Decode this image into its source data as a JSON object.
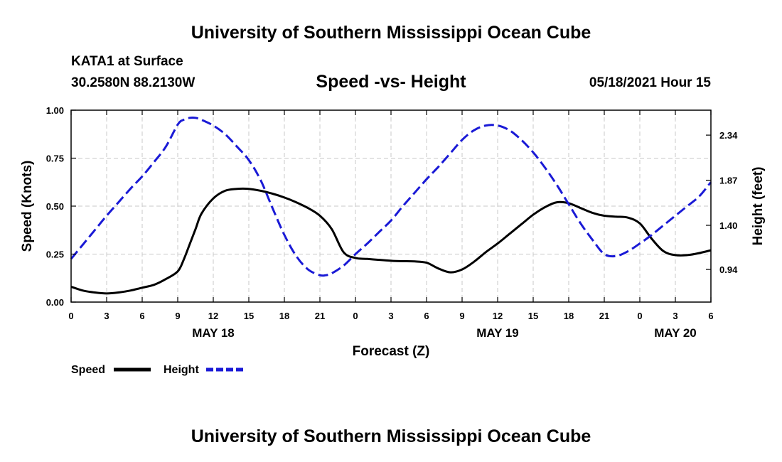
{
  "header": {
    "title": "University of Southern Mississippi Ocean Cube",
    "station": "KATA1 at Surface",
    "coords": "30.2580N  88.2130W",
    "datetime": "05/18/2021 Hour 15",
    "footer_title": "University of Southern Mississippi Ocean Cube"
  },
  "chart_data": {
    "type": "line",
    "title": "Speed -vs- Height",
    "xlabel": "Forecast (Z)",
    "ylabel": "Speed (Knots)",
    "y2label": "Height (feet)",
    "xlim": [
      0,
      54
    ],
    "ylim": [
      0,
      1.0
    ],
    "y2lim": [
      0.6,
      2.6
    ],
    "x_tick_values": [
      0,
      3,
      6,
      9,
      12,
      15,
      18,
      21,
      24,
      27,
      30,
      33,
      36,
      39,
      42,
      45,
      48,
      51,
      54
    ],
    "x_tick_labels": [
      "0",
      "3",
      "6",
      "9",
      "12",
      "15",
      "18",
      "21",
      "0",
      "3",
      "6",
      "9",
      "12",
      "15",
      "18",
      "21",
      "0",
      "3",
      "6"
    ],
    "y_ticks": [
      0.0,
      0.25,
      0.5,
      0.75,
      1.0
    ],
    "y_tick_labels": [
      "0.00",
      "0.25",
      "0.50",
      "0.75",
      "1.00"
    ],
    "y2_ticks": [
      0.94,
      1.4,
      1.87,
      2.34
    ],
    "y2_tick_labels": [
      "0.94",
      "1.40",
      "1.87",
      "2.34"
    ],
    "date_labels": [
      {
        "x": 12,
        "label": "MAY 18"
      },
      {
        "x": 36,
        "label": "MAY 19"
      },
      {
        "x": 51,
        "label": "MAY 20"
      }
    ],
    "series": [
      {
        "name": "Speed",
        "axis": "left",
        "color": "#000000",
        "x": [
          0,
          1,
          2,
          3,
          4,
          5,
          6,
          7,
          8,
          9,
          9.5,
          10,
          10.5,
          11,
          12,
          13,
          14,
          15,
          16,
          17,
          18,
          19,
          20,
          21,
          22,
          23,
          24,
          25,
          26,
          27,
          28,
          29,
          30,
          31,
          32,
          33,
          34,
          35,
          36,
          37,
          38,
          39,
          40,
          41,
          42,
          43,
          44,
          45,
          46,
          47,
          48,
          49,
          50,
          51,
          52,
          53,
          54
        ],
        "values": [
          0.08,
          0.06,
          0.05,
          0.045,
          0.05,
          0.06,
          0.075,
          0.09,
          0.12,
          0.16,
          0.22,
          0.3,
          0.38,
          0.46,
          0.54,
          0.58,
          0.59,
          0.59,
          0.58,
          0.565,
          0.545,
          0.52,
          0.49,
          0.45,
          0.38,
          0.26,
          0.23,
          0.225,
          0.22,
          0.215,
          0.213,
          0.212,
          0.205,
          0.175,
          0.155,
          0.17,
          0.21,
          0.26,
          0.305,
          0.355,
          0.405,
          0.455,
          0.495,
          0.52,
          0.515,
          0.49,
          0.465,
          0.45,
          0.445,
          0.44,
          0.41,
          0.33,
          0.265,
          0.245,
          0.245,
          0.255,
          0.27
        ]
      },
      {
        "name": "Height",
        "axis": "right",
        "color": "#1a1ad6",
        "x": [
          0,
          1,
          2,
          3,
          4,
          5,
          6,
          7,
          8,
          9,
          9.5,
          10,
          10.5,
          11,
          12,
          13,
          14,
          15,
          16,
          17,
          18,
          19,
          20,
          21,
          21.5,
          22,
          23,
          24,
          25,
          26,
          27,
          28,
          29,
          30,
          31,
          32,
          33,
          34,
          35,
          36,
          37,
          38,
          39,
          40,
          41,
          42,
          43,
          44,
          45,
          46,
          47,
          48,
          49,
          50,
          51,
          52,
          53,
          54
        ],
        "values": [
          1.05,
          1.2,
          1.35,
          1.5,
          1.64,
          1.78,
          1.91,
          2.06,
          2.22,
          2.45,
          2.5,
          2.52,
          2.52,
          2.5,
          2.44,
          2.35,
          2.22,
          2.08,
          1.87,
          1.58,
          1.3,
          1.08,
          0.94,
          0.88,
          0.88,
          0.9,
          0.98,
          1.1,
          1.21,
          1.33,
          1.45,
          1.6,
          1.74,
          1.88,
          2.01,
          2.15,
          2.29,
          2.39,
          2.44,
          2.44,
          2.39,
          2.29,
          2.16,
          2.0,
          1.82,
          1.62,
          1.42,
          1.25,
          1.1,
          1.08,
          1.13,
          1.21,
          1.3,
          1.4,
          1.5,
          1.6,
          1.7,
          1.85
        ]
      }
    ],
    "legend": [
      {
        "label": "Speed",
        "style": "solid"
      },
      {
        "label": "Height",
        "style": "dashed"
      }
    ]
  }
}
